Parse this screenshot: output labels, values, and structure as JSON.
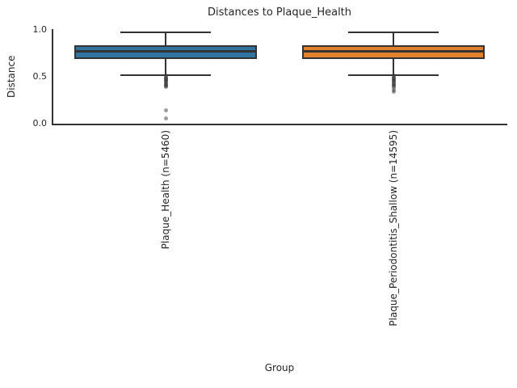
{
  "chart_data": {
    "type": "box",
    "title": "Distances to Plaque_Health",
    "xlabel": "Group",
    "ylabel": "Distance",
    "ylim": [
      0.0,
      1.0
    ],
    "yticks": [
      0.0,
      0.5,
      1.0
    ],
    "grid": false,
    "legend": false,
    "categories": [
      "Plaque_Health (n=5460)",
      "Plaque_Periodontitis_Shallow (n=14595)"
    ],
    "series": [
      {
        "name": "Plaque_Health (n=5460)",
        "color": "#3274a1",
        "whisker_low": 0.52,
        "q1": 0.69,
        "median": 0.77,
        "q3": 0.84,
        "whisker_high": 0.97,
        "outliers": [
          0.51,
          0.5,
          0.49,
          0.48,
          0.47,
          0.46,
          0.45,
          0.44,
          0.43,
          0.42,
          0.41,
          0.4,
          0.39,
          0.14,
          0.06
        ]
      },
      {
        "name": "Plaque_Periodontitis_Shallow (n=14595)",
        "color": "#e1812c",
        "whisker_low": 0.52,
        "q1": 0.69,
        "median": 0.77,
        "q3": 0.84,
        "whisker_high": 0.97,
        "outliers": [
          0.51,
          0.5,
          0.49,
          0.48,
          0.47,
          0.46,
          0.45,
          0.44,
          0.43,
          0.42,
          0.41,
          0.4,
          0.38,
          0.36,
          0.34
        ]
      }
    ]
  },
  "style": {
    "edge_color": "#333333",
    "flier_color_rgba": "rgba(60,60,60,0.5)",
    "text_color": "#262626",
    "background": "#ffffff"
  }
}
